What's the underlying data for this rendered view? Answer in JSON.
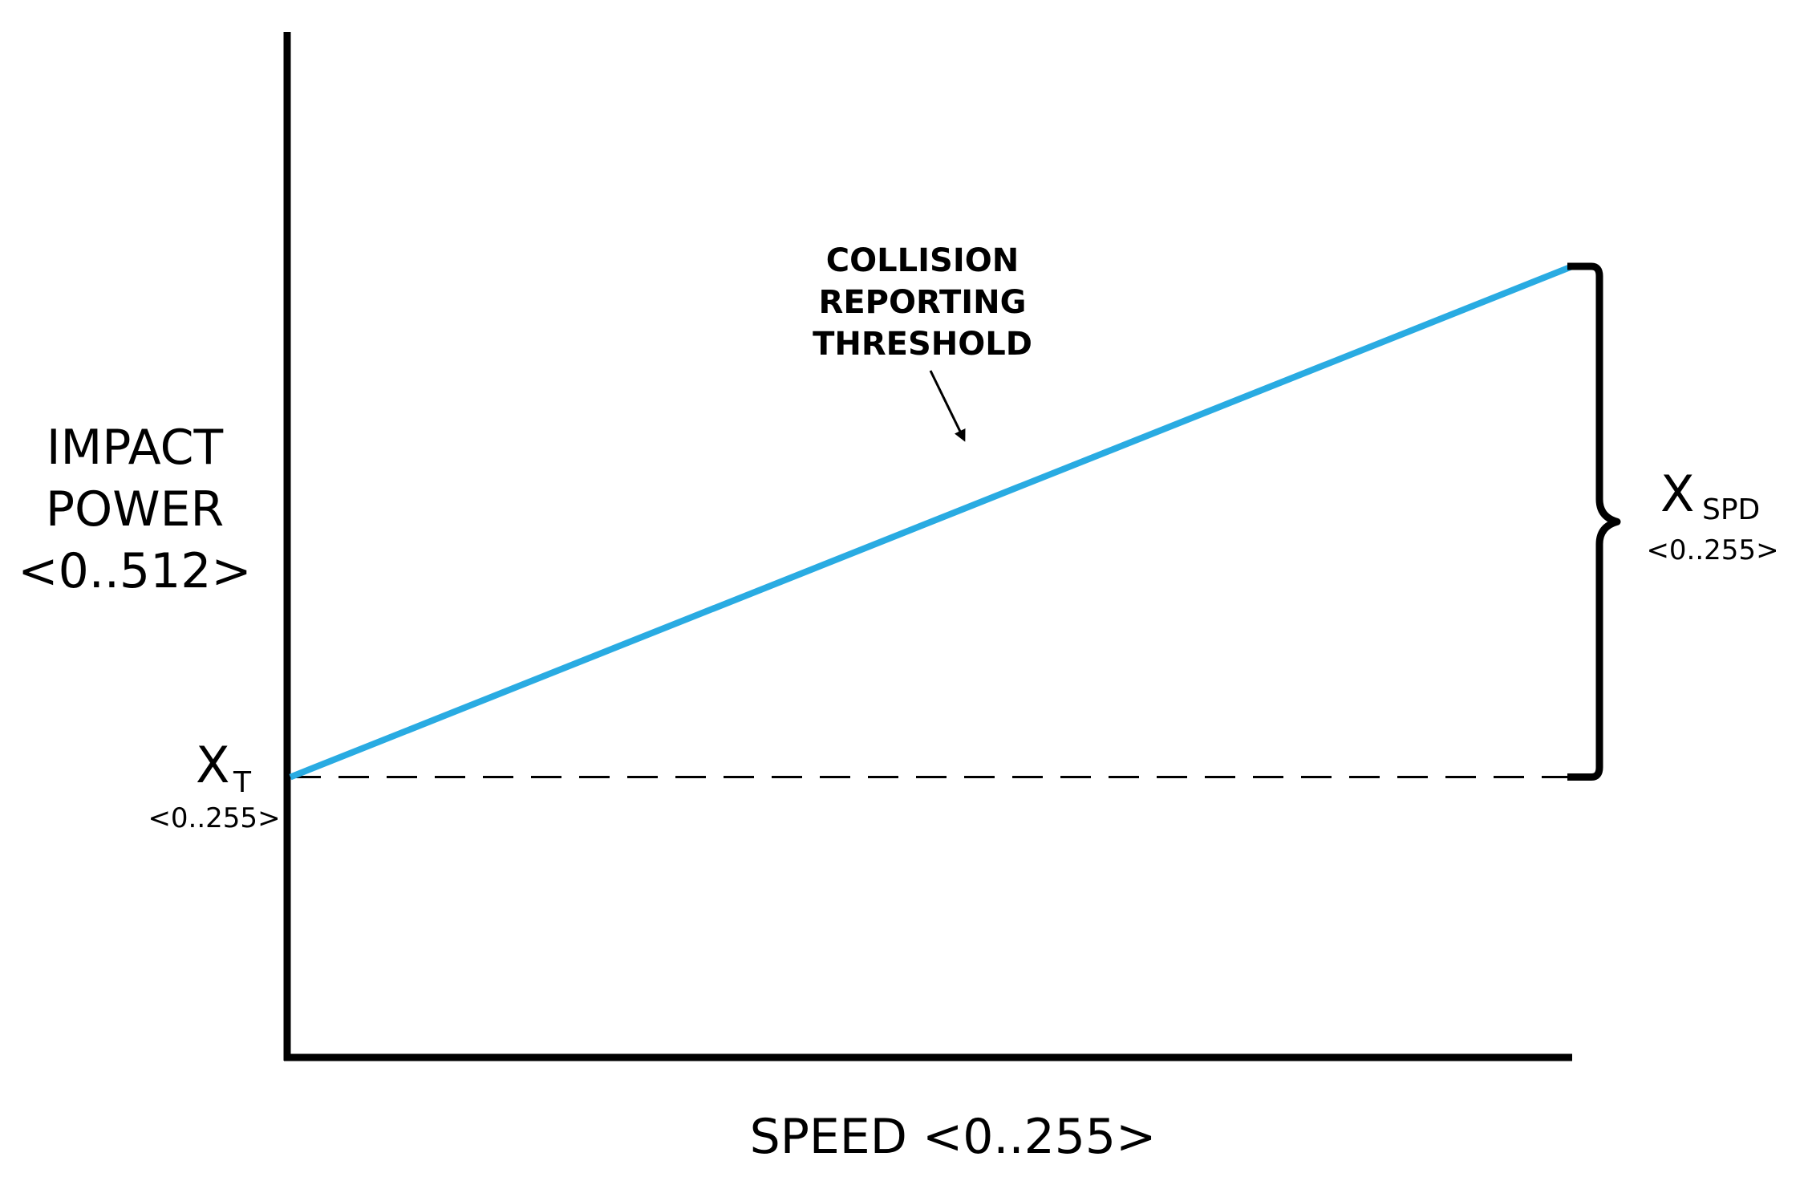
{
  "chart_data": {
    "type": "line",
    "xlabel": "SPEED <0..255>",
    "ylabel": [
      "IMPACT",
      "POWER",
      "<0..512>"
    ],
    "xlim": [
      0,
      255
    ],
    "ylim": [
      0,
      512
    ],
    "grid": false,
    "series": [
      {
        "x": [
          0,
          255
        ],
        "y": [
          140,
          395
        ],
        "color": "#29abe2"
      }
    ],
    "baseline": {
      "y": 140,
      "style": "dashed",
      "label": "X",
      "label_sub": "T",
      "range": "<0..255>"
    },
    "brace": {
      "label": "X",
      "label_sub": "SPD",
      "range": "<0..255>"
    },
    "annotation": {
      "lines": [
        "COLLISION",
        "REPORTING",
        "THRESHOLD"
      ],
      "points_to": "series-line"
    }
  },
  "colors": {
    "line": "#29abe2",
    "axis": "#000000",
    "background": "#ffffff"
  }
}
